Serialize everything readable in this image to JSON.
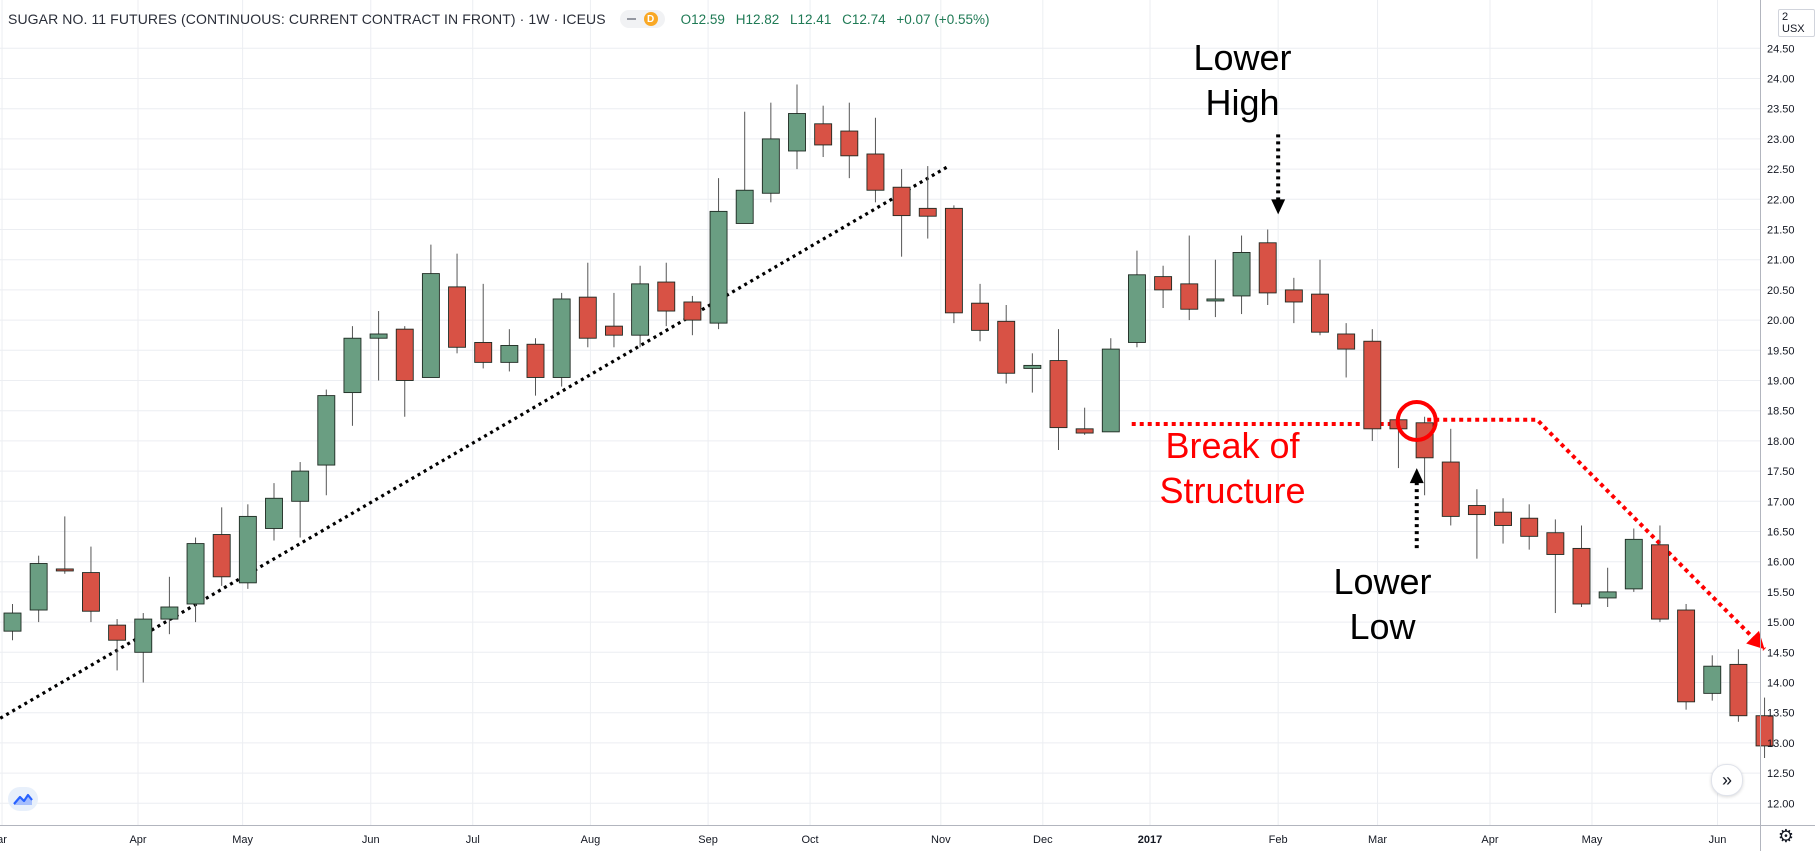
{
  "header": {
    "title": "SUGAR NO. 11 FUTURES (CONTINUOUS: CURRENT CONTRACT IN FRONT) · 1W · ICEUS",
    "interval_badge": "D",
    "ohlc": {
      "open": "O12.59",
      "high": "H12.82",
      "low": "L12.41",
      "close": "C12.74",
      "change": "+0.07 (+0.55%)"
    }
  },
  "price_scale": {
    "currency": "USX",
    "top_label": "2"
  },
  "annotations": {
    "lower_high": [
      "Lower",
      "High"
    ],
    "lower_low": [
      "Lower",
      "Low"
    ],
    "break_of_structure": [
      "Break of",
      "Structure"
    ]
  },
  "colors": {
    "up": "#6a9e82",
    "down": "#d85245",
    "annotation_red": "#ff0000",
    "annotation_black": "#000000",
    "grid": "#eceef2"
  },
  "chart_data": {
    "type": "candlestick",
    "symbol": "SUGAR NO. 11 FUTURES",
    "interval": "1W",
    "y_axis": {
      "min": 12.0,
      "max": 24.5,
      "step": 0.5,
      "ticks": [
        "12.00",
        "12.50",
        "13.00",
        "13.50",
        "14.00",
        "14.50",
        "15.00",
        "15.50",
        "16.00",
        "16.50",
        "17.00",
        "17.50",
        "18.00",
        "18.50",
        "19.00",
        "19.50",
        "20.00",
        "20.50",
        "21.00",
        "21.50",
        "22.00",
        "22.50",
        "23.00",
        "23.50",
        "24.00",
        "24.50"
      ]
    },
    "x_axis": {
      "labels": [
        {
          "label": "ar",
          "index": -0.4
        },
        {
          "label": "Apr",
          "index": 4.8
        },
        {
          "label": "May",
          "index": 8.8
        },
        {
          "label": "Jun",
          "index": 13.7
        },
        {
          "label": "Jul",
          "index": 17.6
        },
        {
          "label": "Aug",
          "index": 22.1
        },
        {
          "label": "Sep",
          "index": 26.6
        },
        {
          "label": "Oct",
          "index": 30.5
        },
        {
          "label": "Nov",
          "index": 35.5
        },
        {
          "label": "Dec",
          "index": 39.4
        },
        {
          "label": "2017",
          "index": 43.5
        },
        {
          "label": "Feb",
          "index": 48.4
        },
        {
          "label": "Mar",
          "index": 52.2
        },
        {
          "label": "Apr",
          "index": 56.5
        },
        {
          "label": "May",
          "index": 60.4
        },
        {
          "label": "Jun",
          "index": 65.2
        }
      ]
    },
    "candles": [
      {
        "o": 14.85,
        "h": 15.3,
        "l": 14.7,
        "c": 15.15
      },
      {
        "o": 15.2,
        "h": 16.1,
        "l": 15.0,
        "c": 15.97
      },
      {
        "o": 15.88,
        "h": 16.75,
        "l": 15.8,
        "c": 15.85
      },
      {
        "o": 15.82,
        "h": 16.25,
        "l": 15.0,
        "c": 15.18
      },
      {
        "o": 14.95,
        "h": 15.05,
        "l": 14.2,
        "c": 14.7
      },
      {
        "o": 14.5,
        "h": 15.15,
        "l": 14.0,
        "c": 15.05
      },
      {
        "o": 15.05,
        "h": 15.75,
        "l": 14.8,
        "c": 15.25
      },
      {
        "o": 15.3,
        "h": 16.4,
        "l": 15.0,
        "c": 16.3
      },
      {
        "o": 16.45,
        "h": 16.9,
        "l": 15.6,
        "c": 15.75
      },
      {
        "o": 15.65,
        "h": 16.95,
        "l": 15.55,
        "c": 16.75
      },
      {
        "o": 16.55,
        "h": 17.3,
        "l": 16.35,
        "c": 17.05
      },
      {
        "o": 17.0,
        "h": 17.65,
        "l": 16.4,
        "c": 17.5
      },
      {
        "o": 17.6,
        "h": 18.85,
        "l": 17.1,
        "c": 18.75
      },
      {
        "o": 18.8,
        "h": 19.9,
        "l": 18.25,
        "c": 19.7
      },
      {
        "o": 19.7,
        "h": 20.15,
        "l": 19.0,
        "c": 19.77
      },
      {
        "o": 19.85,
        "h": 19.9,
        "l": 18.4,
        "c": 19.0
      },
      {
        "o": 19.05,
        "h": 21.25,
        "l": 19.05,
        "c": 20.77
      },
      {
        "o": 20.55,
        "h": 21.1,
        "l": 19.45,
        "c": 19.55
      },
      {
        "o": 19.63,
        "h": 20.6,
        "l": 19.2,
        "c": 19.3
      },
      {
        "o": 19.3,
        "h": 19.85,
        "l": 19.15,
        "c": 19.58
      },
      {
        "o": 19.6,
        "h": 19.7,
        "l": 18.75,
        "c": 19.05
      },
      {
        "o": 19.05,
        "h": 20.45,
        "l": 18.9,
        "c": 20.35
      },
      {
        "o": 20.38,
        "h": 20.95,
        "l": 19.55,
        "c": 19.7
      },
      {
        "o": 19.9,
        "h": 20.45,
        "l": 19.55,
        "c": 19.75
      },
      {
        "o": 19.75,
        "h": 20.9,
        "l": 19.55,
        "c": 20.6
      },
      {
        "o": 20.63,
        "h": 20.95,
        "l": 19.9,
        "c": 20.15
      },
      {
        "o": 20.3,
        "h": 20.4,
        "l": 19.75,
        "c": 20.0
      },
      {
        "o": 19.95,
        "h": 22.35,
        "l": 19.85,
        "c": 21.8
      },
      {
        "o": 21.6,
        "h": 23.45,
        "l": 21.6,
        "c": 22.15
      },
      {
        "o": 22.1,
        "h": 23.6,
        "l": 21.95,
        "c": 23.0
      },
      {
        "o": 22.8,
        "h": 23.9,
        "l": 22.5,
        "c": 23.42
      },
      {
        "o": 23.25,
        "h": 23.55,
        "l": 22.7,
        "c": 22.9
      },
      {
        "o": 23.13,
        "h": 23.6,
        "l": 22.35,
        "c": 22.72
      },
      {
        "o": 22.75,
        "h": 23.35,
        "l": 21.95,
        "c": 22.15
      },
      {
        "o": 22.2,
        "h": 22.5,
        "l": 21.05,
        "c": 21.73
      },
      {
        "o": 21.85,
        "h": 22.55,
        "l": 21.35,
        "c": 21.72
      },
      {
        "o": 21.85,
        "h": 21.9,
        "l": 19.95,
        "c": 20.12
      },
      {
        "o": 20.28,
        "h": 20.6,
        "l": 19.65,
        "c": 19.83
      },
      {
        "o": 19.98,
        "h": 20.25,
        "l": 18.95,
        "c": 19.12
      },
      {
        "o": 19.2,
        "h": 19.45,
        "l": 18.8,
        "c": 19.25
      },
      {
        "o": 19.33,
        "h": 19.85,
        "l": 17.85,
        "c": 18.22
      },
      {
        "o": 18.2,
        "h": 18.55,
        "l": 18.1,
        "c": 18.13
      },
      {
        "o": 18.15,
        "h": 19.7,
        "l": 18.15,
        "c": 19.52
      },
      {
        "o": 19.63,
        "h": 21.15,
        "l": 19.55,
        "c": 20.75
      },
      {
        "o": 20.72,
        "h": 20.9,
        "l": 20.2,
        "c": 20.5
      },
      {
        "o": 20.6,
        "h": 21.4,
        "l": 20.0,
        "c": 20.18
      },
      {
        "o": 20.33,
        "h": 21.0,
        "l": 20.05,
        "c": 20.35
      },
      {
        "o": 20.4,
        "h": 21.4,
        "l": 20.1,
        "c": 21.12
      },
      {
        "o": 21.28,
        "h": 21.5,
        "l": 20.25,
        "c": 20.45
      },
      {
        "o": 20.5,
        "h": 20.7,
        "l": 19.95,
        "c": 20.3
      },
      {
        "o": 20.43,
        "h": 21.0,
        "l": 19.75,
        "c": 19.8
      },
      {
        "o": 19.77,
        "h": 19.95,
        "l": 19.05,
        "c": 19.52
      },
      {
        "o": 19.65,
        "h": 19.85,
        "l": 18.0,
        "c": 18.2
      },
      {
        "o": 18.35,
        "h": 18.5,
        "l": 17.55,
        "c": 18.2
      },
      {
        "o": 18.3,
        "h": 18.4,
        "l": 17.1,
        "c": 17.72
      },
      {
        "o": 17.65,
        "h": 18.2,
        "l": 16.6,
        "c": 16.75
      },
      {
        "o": 16.93,
        "h": 17.2,
        "l": 16.05,
        "c": 16.78
      },
      {
        "o": 16.82,
        "h": 17.05,
        "l": 16.3,
        "c": 16.6
      },
      {
        "o": 16.72,
        "h": 16.95,
        "l": 16.2,
        "c": 16.42
      },
      {
        "o": 16.48,
        "h": 16.7,
        "l": 15.15,
        "c": 16.12
      },
      {
        "o": 16.22,
        "h": 16.6,
        "l": 15.25,
        "c": 15.3
      },
      {
        "o": 15.4,
        "h": 15.9,
        "l": 15.25,
        "c": 15.5
      },
      {
        "o": 15.55,
        "h": 16.55,
        "l": 15.5,
        "c": 16.37
      },
      {
        "o": 16.28,
        "h": 16.6,
        "l": 15.0,
        "c": 15.05
      },
      {
        "o": 15.2,
        "h": 15.3,
        "l": 13.55,
        "c": 13.68
      },
      {
        "o": 13.82,
        "h": 14.45,
        "l": 13.7,
        "c": 14.27
      },
      {
        "o": 14.3,
        "h": 14.55,
        "l": 13.35,
        "c": 13.45
      },
      {
        "o": 13.45,
        "h": 13.75,
        "l": 12.75,
        "c": 12.95
      }
    ],
    "annotations": [
      {
        "type": "dotted_trendline",
        "color": "black",
        "from": {
          "index": -0.7,
          "price": 13.35
        },
        "to": {
          "index": 35.8,
          "price": 22.55
        }
      },
      {
        "type": "dotted_line",
        "color": "red",
        "points": [
          {
            "index": 42.8,
            "price": 18.28
          },
          {
            "index": 53.0,
            "price": 18.28
          }
        ]
      },
      {
        "type": "dotted_line",
        "color": "red",
        "points": [
          {
            "index": 54.1,
            "price": 18.35
          },
          {
            "index": 58.3,
            "price": 18.35
          },
          {
            "index": 67.0,
            "price": 14.55
          }
        ]
      },
      {
        "type": "circle",
        "color": "red",
        "center": {
          "index": 53.7,
          "price": 18.33
        }
      },
      {
        "type": "arrow",
        "color": "black",
        "label": "Lower High",
        "points_to": {
          "index": 48.4,
          "price": 21.75
        }
      },
      {
        "type": "arrow",
        "color": "black",
        "label": "Lower Low",
        "points_to": {
          "index": 53.7,
          "price": 17.55
        }
      }
    ]
  }
}
